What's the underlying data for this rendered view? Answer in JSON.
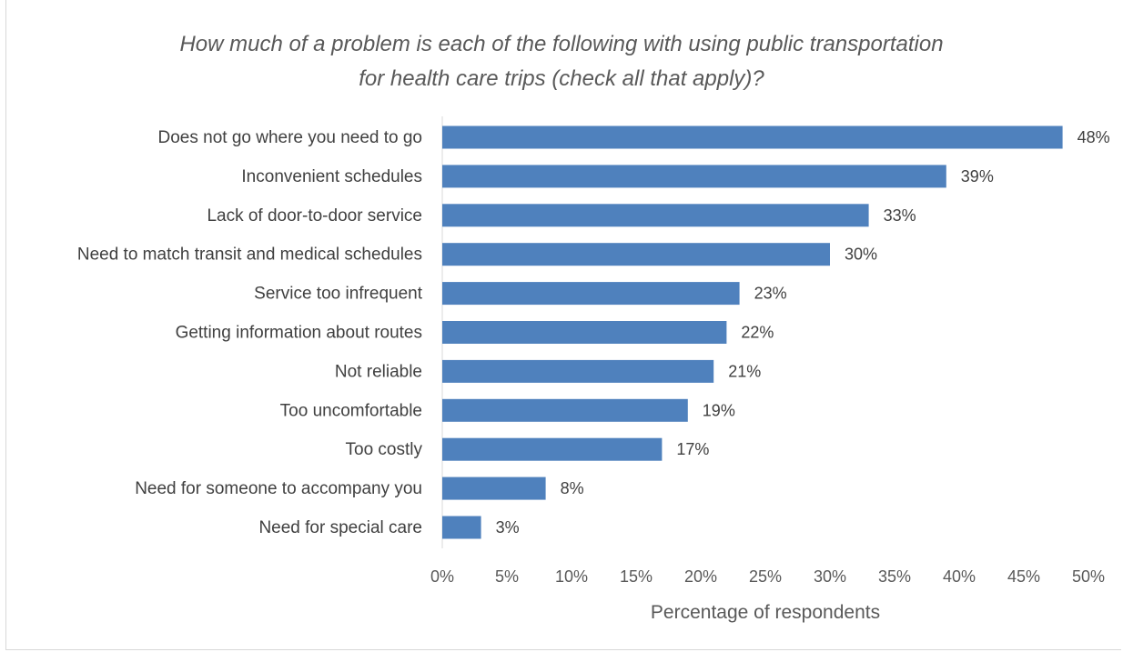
{
  "chart_data": {
    "type": "bar",
    "orientation": "horizontal",
    "title_lines": [
      "How much of a problem is each of the following with using public transportation",
      "for health care trips (check all that apply)?"
    ],
    "categories": [
      "Does not go where you need to go",
      "Inconvenient schedules",
      "Lack of door-to-door service",
      "Need to match transit and medical schedules",
      "Service too infrequent",
      "Getting information about routes",
      "Not reliable",
      "Too uncomfortable",
      "Too costly",
      "Need for someone to accompany you",
      "Need for special care"
    ],
    "values": [
      48,
      39,
      33,
      30,
      23,
      22,
      21,
      19,
      17,
      8,
      3
    ],
    "data_labels": [
      "48%",
      "39%",
      "33%",
      "30%",
      "23%",
      "22%",
      "21%",
      "19%",
      "17%",
      "8%",
      "3%"
    ],
    "xlabel": "Percentage of respondents",
    "ylabel": "",
    "xlim": [
      0,
      50
    ],
    "x_ticks": [
      "0%",
      "5%",
      "10%",
      "15%",
      "20%",
      "25%",
      "30%",
      "35%",
      "40%",
      "45%",
      "50%"
    ],
    "grid": false,
    "legend": "none",
    "bar_color": "#4f81bd"
  }
}
